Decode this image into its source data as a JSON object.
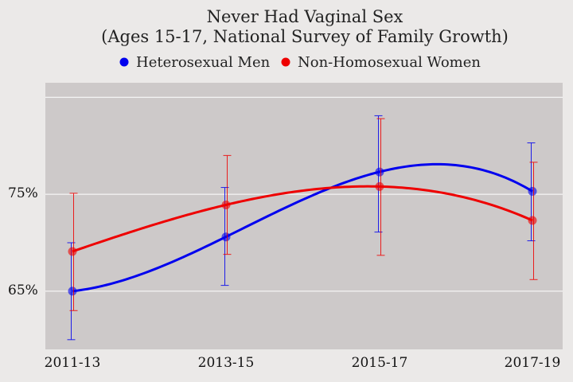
{
  "chart_data": {
    "type": "line",
    "title": "Never Had Vaginal Sex",
    "subtitle": "(Ages 15-17, National Survey of Family Growth)",
    "categories": [
      "2011-13",
      "2013-15",
      "2015-17",
      "2017-19"
    ],
    "y_ticks": [
      65,
      75
    ],
    "y_tick_labels": [
      "65%",
      "75%"
    ],
    "ylim": [
      59,
      86.5
    ],
    "grid": true,
    "legend_position": "top",
    "series": [
      {
        "name": "Heterosexual Men",
        "color": "#0000ee",
        "values": [
          65.0,
          70.6,
          77.3,
          75.3
        ],
        "error_low": [
          60.0,
          65.6,
          71.1,
          70.2
        ],
        "error_high": [
          70.0,
          75.7,
          83.1,
          80.3
        ]
      },
      {
        "name": "Non-Homosexual Women",
        "color": "#ee0000",
        "values": [
          69.1,
          73.9,
          75.8,
          72.3
        ],
        "error_low": [
          63.0,
          68.8,
          68.7,
          66.2
        ],
        "error_high": [
          75.1,
          79.0,
          82.8,
          78.3
        ]
      }
    ]
  }
}
